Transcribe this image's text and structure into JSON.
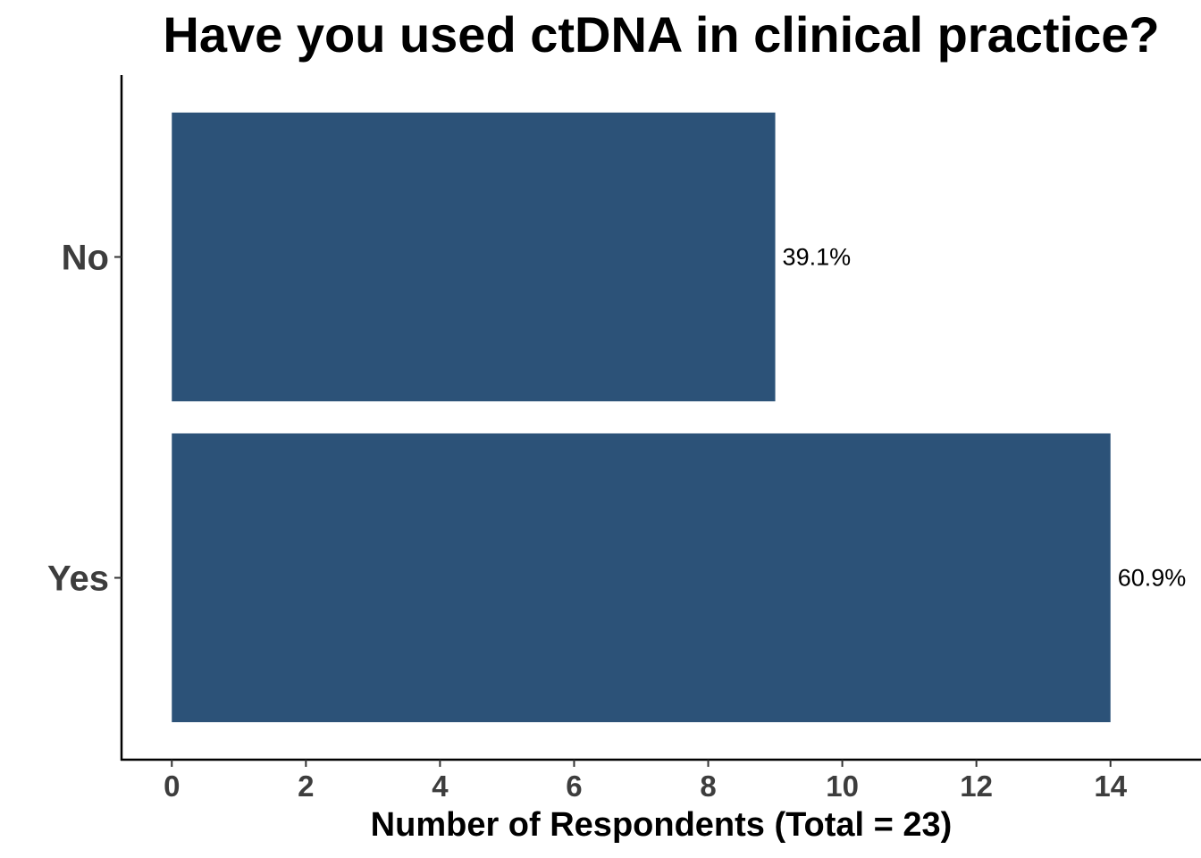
{
  "chart_data": {
    "type": "bar",
    "orientation": "horizontal",
    "title": "Have you used ctDNA in clinical practice?",
    "xlabel": "Number of Respondents (Total = 23)",
    "ylabel": "",
    "categories": [
      "Yes",
      "No"
    ],
    "values": [
      14,
      9
    ],
    "data_labels": [
      "60.9%",
      "39.1%"
    ],
    "xlim": [
      -0.75,
      15.35
    ],
    "xticks": [
      0,
      2,
      4,
      6,
      8,
      10,
      12,
      14
    ],
    "xtick_labels": [
      "0",
      "2",
      "4",
      "6",
      "8",
      "10",
      "12",
      "14"
    ],
    "bar_color": "#2c5278",
    "grid": false,
    "legend": "none"
  }
}
